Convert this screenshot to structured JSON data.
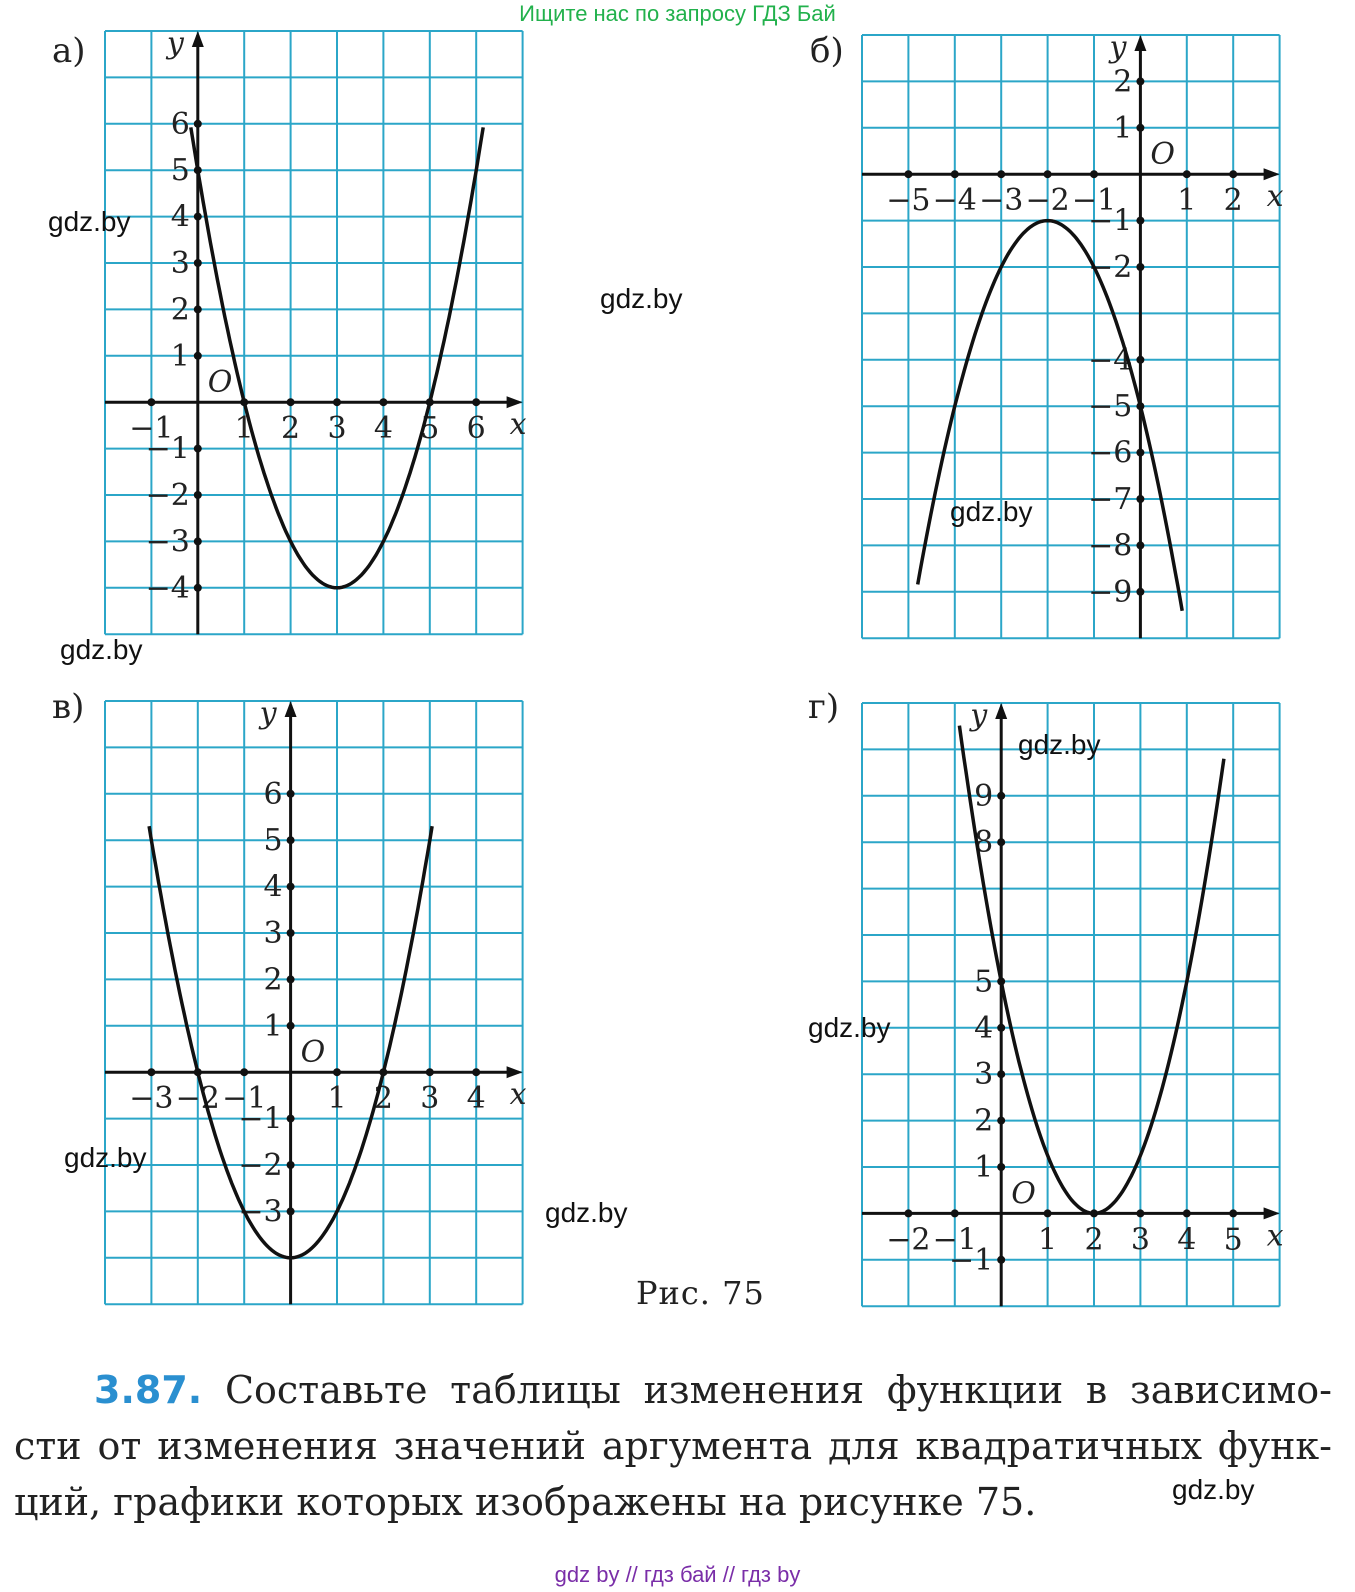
{
  "banner": "Ищите нас по запросу ГДЗ Бай",
  "footer": "gdz by  //  гдз бай  //  гдз by",
  "figure_caption": "Рис. 75",
  "watermark": "gdz.by",
  "problem": {
    "number": "3.87.",
    "line1": "Составьте таблицы изменения функции в зависимо-",
    "line2": "сти от изменения значений аргумента для квадратичных функ-",
    "line3": "ций, графики которых изображены на рисунке 75."
  },
  "colors": {
    "grid": "#2ba6c8",
    "axis": "#111111",
    "curve": "#111111",
    "problem_number": "#2a8fd0",
    "banner": "#22b14c",
    "footer": "#7a2ea8"
  },
  "chart_data": [
    {
      "type": "line",
      "panel_label": "а)",
      "x_label": "x",
      "y_label": "y",
      "origin_label": "O",
      "x_ticks": [
        {
          "v": -1,
          "t": "−1"
        },
        {
          "v": 1,
          "t": "1"
        },
        {
          "v": 2,
          "t": "2"
        },
        {
          "v": 3,
          "t": "3"
        },
        {
          "v": 4,
          "t": "4"
        },
        {
          "v": 5,
          "t": "5"
        },
        {
          "v": 6,
          "t": "6"
        }
      ],
      "y_ticks": [
        {
          "v": -4,
          "t": "−4"
        },
        {
          "v": -3,
          "t": "−3"
        },
        {
          "v": -2,
          "t": "−2"
        },
        {
          "v": -1,
          "t": "−1"
        },
        {
          "v": 1,
          "t": "1"
        },
        {
          "v": 2,
          "t": "2"
        },
        {
          "v": 3,
          "t": "3"
        },
        {
          "v": 4,
          "t": "4"
        },
        {
          "v": 5,
          "t": "5"
        },
        {
          "v": 6,
          "t": "6"
        }
      ],
      "xlim": [
        -2,
        7
      ],
      "ylim": [
        -5,
        8
      ],
      "parabola": {
        "vertex": [
          3,
          -4
        ],
        "a": 1,
        "x_range": [
          -0.15,
          6.15
        ]
      }
    },
    {
      "type": "line",
      "panel_label": "б)",
      "x_label": "x",
      "y_label": "y",
      "origin_label": "O",
      "x_ticks": [
        {
          "v": -5,
          "t": "−5"
        },
        {
          "v": -4,
          "t": "−4"
        },
        {
          "v": -3,
          "t": "−3"
        },
        {
          "v": -2,
          "t": "−2"
        },
        {
          "v": -1,
          "t": "−1"
        },
        {
          "v": 1,
          "t": "1"
        },
        {
          "v": 2,
          "t": "2"
        }
      ],
      "y_ticks": [
        {
          "v": 2,
          "t": "2"
        },
        {
          "v": 1,
          "t": "1"
        },
        {
          "v": -1,
          "t": "−1"
        },
        {
          "v": -2,
          "t": "−2"
        },
        {
          "v": -4,
          "t": "−4"
        },
        {
          "v": -5,
          "t": "−5"
        },
        {
          "v": -6,
          "t": "−6"
        },
        {
          "v": -7,
          "t": "−7"
        },
        {
          "v": -8,
          "t": "−8"
        },
        {
          "v": -9,
          "t": "−9"
        }
      ],
      "xlim": [
        -6,
        3
      ],
      "ylim": [
        -10,
        3
      ],
      "parabola": {
        "vertex": [
          -2,
          -1
        ],
        "a": -1,
        "x_range": [
          -4.8,
          0.9
        ]
      }
    },
    {
      "type": "line",
      "panel_label": "в)",
      "x_label": "x",
      "y_label": "y",
      "origin_label": "O",
      "x_ticks": [
        {
          "v": -3,
          "t": "−3"
        },
        {
          "v": -2,
          "t": "−2"
        },
        {
          "v": -1,
          "t": "−1"
        },
        {
          "v": 1,
          "t": "1"
        },
        {
          "v": 2,
          "t": "2"
        },
        {
          "v": 3,
          "t": "3"
        },
        {
          "v": 4,
          "t": "4"
        }
      ],
      "y_ticks": [
        {
          "v": -3,
          "t": "−3"
        },
        {
          "v": -2,
          "t": "−2"
        },
        {
          "v": -1,
          "t": "−1"
        },
        {
          "v": 1,
          "t": "1"
        },
        {
          "v": 2,
          "t": "2"
        },
        {
          "v": 3,
          "t": "3"
        },
        {
          "v": 4,
          "t": "4"
        },
        {
          "v": 5,
          "t": "5"
        },
        {
          "v": 6,
          "t": "6"
        }
      ],
      "xlim": [
        -4,
        5
      ],
      "ylim": [
        -5,
        8
      ],
      "parabola": {
        "vertex": [
          0,
          -4
        ],
        "a": 1,
        "x_range": [
          -3.05,
          3.05
        ]
      }
    },
    {
      "type": "line",
      "panel_label": "г)",
      "x_label": "x",
      "y_label": "y",
      "origin_label": "O",
      "x_ticks": [
        {
          "v": -2,
          "t": "−2"
        },
        {
          "v": -1,
          "t": "−1"
        },
        {
          "v": 1,
          "t": "1"
        },
        {
          "v": 2,
          "t": "2"
        },
        {
          "v": 3,
          "t": "3"
        },
        {
          "v": 4,
          "t": "4"
        },
        {
          "v": 5,
          "t": "5"
        }
      ],
      "y_ticks": [
        {
          "v": -1,
          "t": "−1"
        },
        {
          "v": 1,
          "t": "1"
        },
        {
          "v": 2,
          "t": "2"
        },
        {
          "v": 3,
          "t": "3"
        },
        {
          "v": 4,
          "t": "4"
        },
        {
          "v": 5,
          "t": "5"
        },
        {
          "v": 8,
          "t": "8"
        },
        {
          "v": 9,
          "t": "9"
        }
      ],
      "xlim": [
        -3,
        6
      ],
      "ylim": [
        -2,
        11
      ],
      "parabola": {
        "vertex": [
          2,
          0
        ],
        "a": 1.25,
        "x_range": [
          -0.9,
          4.8
        ]
      }
    }
  ]
}
